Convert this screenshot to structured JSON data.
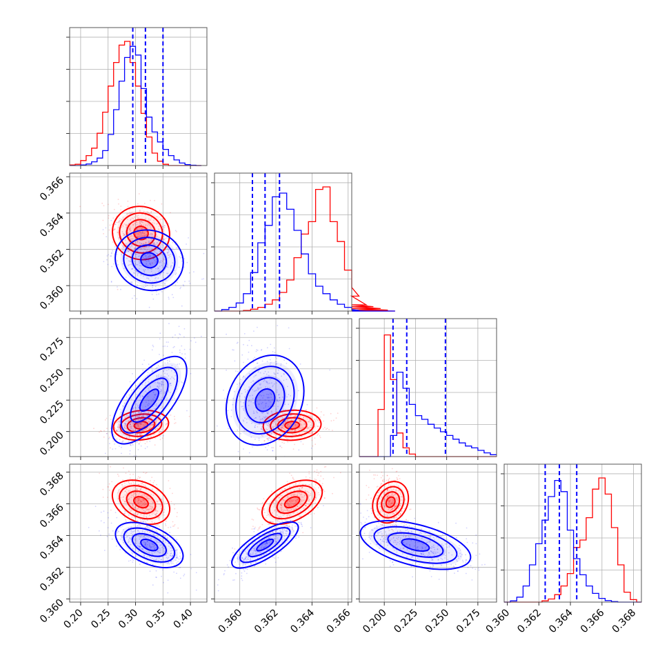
{
  "chart_data": {
    "type": "corner",
    "grid": true,
    "series": [
      {
        "name": "",
        "color": "#ff0000",
        "mean": [
          0.31,
          0.3629,
          0.205,
          0.3661
        ],
        "sd": [
          0.025,
          0.0008,
          0.006,
          0.0008
        ],
        "corr": {
          "1-0": -0.3,
          "2-0": 0.2,
          "2-1": 0.1,
          "3-0": -0.5,
          "3-1": 0.6,
          "3-2": -0.3
        }
      },
      {
        "name": "",
        "color": "#0000ff",
        "mean": [
          0.325,
          0.3614,
          0.225,
          0.3634
        ],
        "sd": [
          0.03,
          0.0009,
          0.022,
          0.0008
        ],
        "corr": {
          "1-0": -0.3,
          "2-0": 0.75,
          "2-1": -0.3,
          "3-0": -0.6,
          "3-1": 0.8,
          "3-2": -0.55
        }
      }
    ],
    "quantiles_blue": [
      [
        0.295,
        0.318,
        0.35
      ],
      [
        0.3607,
        0.3614,
        0.3622
      ],
      [
        0.207,
        0.218,
        0.249
      ],
      [
        0.3624,
        0.3633,
        0.3644
      ]
    ],
    "histograms": [
      {
        "edges_start": 0.18,
        "bin": 0.01,
        "red": [
          0.005,
          0.01,
          0.04,
          0.08,
          0.14,
          0.26,
          0.43,
          0.64,
          0.83,
          0.97,
          1.0,
          0.83,
          0.64,
          0.42,
          0.23,
          0.1,
          0.035,
          0.01,
          0.0,
          0.0,
          0.0,
          0.0,
          0.0,
          0.0
        ],
        "blue": [
          0.0,
          0.0,
          0.005,
          0.012,
          0.03,
          0.06,
          0.12,
          0.25,
          0.45,
          0.68,
          0.87,
          0.96,
          0.89,
          0.62,
          0.39,
          0.27,
          0.19,
          0.13,
          0.08,
          0.045,
          0.02,
          0.008,
          0.003,
          0.0
        ]
      },
      {
        "edges_start": 0.3586,
        "bin": 0.0004,
        "red": [
          0.0,
          0.0,
          0.0,
          0.0,
          0.005,
          0.015,
          0.03,
          0.055,
          0.09,
          0.15,
          0.25,
          0.43,
          0.62,
          0.72,
          0.98,
          1.0,
          0.72,
          0.56,
          0.33,
          0.19,
          0.12,
          0.05,
          0.035,
          0.02,
          0.008,
          0.0
        ],
        "blue": [
          0.0,
          0.012,
          0.03,
          0.065,
          0.14,
          0.31,
          0.55,
          0.69,
          0.92,
          0.95,
          0.82,
          0.65,
          0.46,
          0.3,
          0.2,
          0.14,
          0.09,
          0.055,
          0.03,
          0.012,
          0.005,
          0.0,
          0.0,
          0.0,
          0.0,
          0.0
        ]
      },
      {
        "edges_start": 0.18,
        "bin": 0.005,
        "red": [
          0.0,
          0.0,
          0.0,
          0.38,
          0.98,
          0.62,
          0.19,
          0.07,
          0.02,
          0.0,
          0.0,
          0.0,
          0.0,
          0.0,
          0.0,
          0.0,
          0.0,
          0.0,
          0.0,
          0.0,
          0.0,
          0.0
        ],
        "blue": [
          0.0,
          0.0,
          0.0,
          0.0,
          0.0,
          0.17,
          0.68,
          0.55,
          0.42,
          0.33,
          0.3,
          0.26,
          0.23,
          0.2,
          0.17,
          0.14,
          0.11,
          0.085,
          0.07,
          0.05,
          0.03,
          0.015
        ]
      },
      {
        "edges_start": 0.3598,
        "bin": 0.0004,
        "red": [
          0.0,
          0.0,
          0.0,
          0.0,
          0.0,
          0.0,
          0.01,
          0.025,
          0.06,
          0.13,
          0.23,
          0.44,
          0.5,
          0.68,
          0.91,
          1.0,
          0.87,
          0.6,
          0.3,
          0.08,
          0.02,
          0.0
        ],
        "blue": [
          0.0,
          0.01,
          0.04,
          0.13,
          0.3,
          0.47,
          0.66,
          0.85,
          0.98,
          0.89,
          0.58,
          0.35,
          0.22,
          0.13,
          0.07,
          0.03,
          0.012,
          0.004,
          0.0,
          0.0,
          0.0,
          0.0
        ]
      }
    ],
    "axes": [
      {
        "range": [
          0.18,
          0.43
        ],
        "ticks": [
          "0.20",
          "0.25",
          "0.30",
          "0.35",
          "0.40"
        ],
        "tick_values": [
          0.2,
          0.25,
          0.3,
          0.35,
          0.4
        ]
      },
      {
        "range": [
          0.3586,
          0.3662
        ],
        "ticks": [
          "0.360",
          "0.362",
          "0.364",
          "0.366"
        ],
        "tick_values": [
          0.36,
          0.362,
          0.364,
          0.366
        ]
      },
      {
        "range": [
          0.18,
          0.29
        ],
        "ticks": [
          "0.200",
          "0.225",
          "0.250",
          "0.275"
        ],
        "tick_values": [
          0.2,
          0.225,
          0.25,
          0.275
        ]
      },
      {
        "range": [
          0.3598,
          0.3685
        ],
        "ticks": [
          "0.360",
          "0.362",
          "0.364",
          "0.366",
          "0.368"
        ],
        "tick_values": [
          0.36,
          0.362,
          0.364,
          0.366,
          0.368
        ]
      }
    ]
  }
}
